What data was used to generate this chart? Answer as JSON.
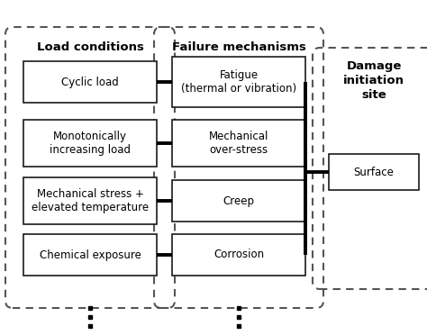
{
  "bg_color": "#ffffff",
  "col1_header": "Load conditions",
  "col2_header": "Failure mechanisms",
  "col3_header": "Damage\ninitiation\nsite",
  "col1_boxes": [
    "Cyclic load",
    "Monotonically\nincreasing load",
    "Mechanical stress +\nelevated temperature",
    "Chemical exposure"
  ],
  "col2_boxes": [
    "Fatigue\n(thermal or vibration)",
    "Mechanical\nover-stress",
    "Creep",
    "Corrosion"
  ],
  "col3_box": "Surface",
  "box_color": "#ffffff",
  "box_edge_color": "#1a1a1a",
  "dashed_rect_color": "#555555",
  "arrow_color": "#000000",
  "text_color": "#000000",
  "header_fontsize": 9.5,
  "body_fontsize": 8.5
}
